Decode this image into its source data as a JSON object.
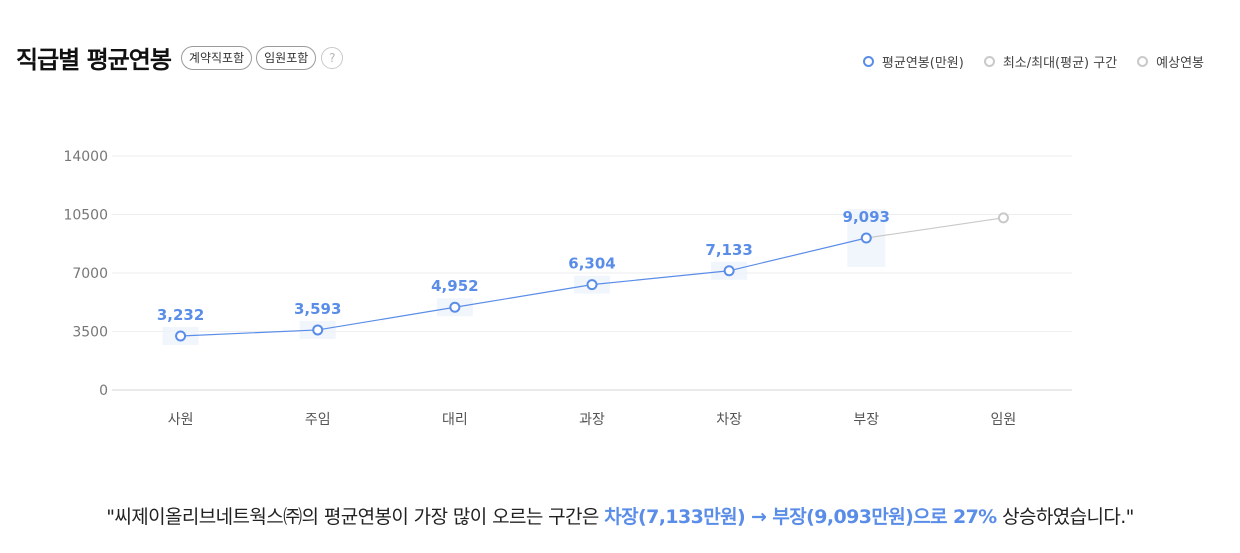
{
  "header": {
    "title": "직급별 평균연봉",
    "chips": [
      "계약직포함",
      "임원포함"
    ],
    "help": "?"
  },
  "legend": [
    {
      "label": "평균연봉(만원)",
      "color": "#5a8de8"
    },
    {
      "label": "최소/최대(평균) 구간",
      "color": "#c9c9c9"
    },
    {
      "label": "예상연봉",
      "color": "#c9c9c9"
    }
  ],
  "chart_data": {
    "type": "line",
    "categories": [
      "사원",
      "주임",
      "대리",
      "과장",
      "차장",
      "부장",
      "임원"
    ],
    "ylim": [
      0,
      14000
    ],
    "yticks": [
      0,
      3500,
      7000,
      10500,
      14000
    ],
    "grid": true,
    "series": [
      {
        "name": "평균연봉(만원)",
        "color": "#5a8de8",
        "values": [
          3232,
          3593,
          4952,
          6304,
          7133,
          9093,
          null
        ],
        "labels": [
          "3,232",
          "3,593",
          "4,952",
          "6,304",
          "7,133",
          "9,093",
          ""
        ]
      },
      {
        "name": "예상연봉",
        "color": "#c9c9c9",
        "values": [
          null,
          null,
          null,
          null,
          null,
          9093,
          10300
        ]
      }
    ]
  },
  "footer": {
    "pre": "\"씨제이올리브네트웍스㈜의 평균연봉이 가장 많이 오르는 구간은 ",
    "highlight": "차장(7,133만원) → 부장(9,093만원)으로 27%",
    "post": " 상승하였습니다.\""
  }
}
